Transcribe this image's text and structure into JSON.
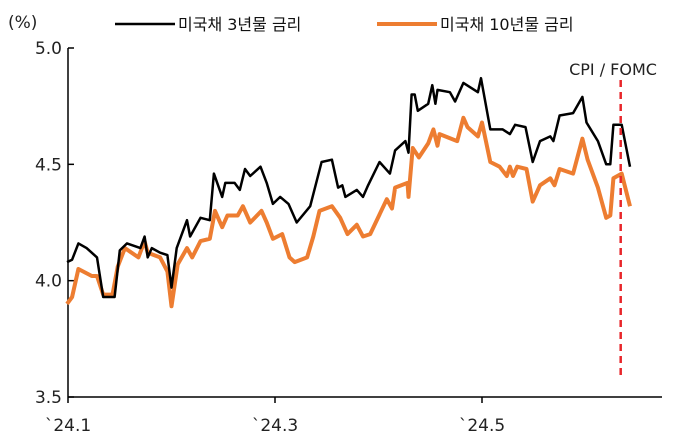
{
  "chart_data": {
    "type": "line",
    "title": "",
    "ylabel": "(%)",
    "xlabel": "",
    "ylim": [
      3.5,
      5.0
    ],
    "yticks": [
      3.5,
      4.0,
      4.5,
      5.0
    ],
    "ytick_labels": [
      "3.5",
      "4.0",
      "4.5",
      "5.0"
    ],
    "x_unit": "month of 2024",
    "xlim": [
      1,
      6.72
    ],
    "xticks": [
      1,
      3,
      5
    ],
    "xtick_labels": [
      "`24.1",
      "`24.3",
      "`24.5"
    ],
    "grid": false,
    "legend_position": "top",
    "annotations": [
      {
        "label": "CPI / FOMC",
        "x": 6.34,
        "style": "red dashed vertical line",
        "color": "#e8262a"
      }
    ],
    "series": [
      {
        "name": "미국채 3년물 금리",
        "color": "#000000",
        "x": [
          0.99,
          1.04,
          1.1,
          1.18,
          1.28,
          1.34,
          1.45,
          1.5,
          1.57,
          1.7,
          1.74,
          1.77,
          1.81,
          1.89,
          1.96,
          2.0,
          2.05,
          2.15,
          2.18,
          2.28,
          2.37,
          2.41,
          2.49,
          2.52,
          2.61,
          2.66,
          2.71,
          2.76,
          2.86,
          2.92,
          2.98,
          3.05,
          3.13,
          3.21,
          3.34,
          3.45,
          3.55,
          3.61,
          3.65,
          3.68,
          3.79,
          3.85,
          3.9,
          4.01,
          4.11,
          4.16,
          4.26,
          4.29,
          4.32,
          4.35,
          4.38,
          4.48,
          4.52,
          4.55,
          4.57,
          4.69,
          4.74,
          4.82,
          4.96,
          4.99,
          5.08,
          5.2,
          5.27,
          5.32,
          5.42,
          5.49,
          5.56,
          5.66,
          5.69,
          5.75,
          5.88,
          5.97,
          6.01,
          6.12,
          6.2,
          6.24,
          6.27,
          6.35,
          6.43
        ],
        "values": [
          4.08,
          4.09,
          4.16,
          4.14,
          4.1,
          3.93,
          3.93,
          4.13,
          4.16,
          4.14,
          4.19,
          4.1,
          4.14,
          4.12,
          4.11,
          3.97,
          4.14,
          4.26,
          4.19,
          4.27,
          4.26,
          4.46,
          4.36,
          4.42,
          4.42,
          4.39,
          4.48,
          4.45,
          4.49,
          4.42,
          4.33,
          4.36,
          4.33,
          4.25,
          4.32,
          4.51,
          4.52,
          4.4,
          4.41,
          4.36,
          4.39,
          4.36,
          4.41,
          4.51,
          4.46,
          4.56,
          4.6,
          4.55,
          4.8,
          4.8,
          4.73,
          4.76,
          4.84,
          4.76,
          4.82,
          4.81,
          4.77,
          4.85,
          4.81,
          4.87,
          4.65,
          4.65,
          4.63,
          4.67,
          4.66,
          4.51,
          4.6,
          4.62,
          4.6,
          4.71,
          4.72,
          4.79,
          4.68,
          4.6,
          4.5,
          4.5,
          4.67,
          4.67,
          4.49
        ]
      },
      {
        "name": "미국채 10년물 금리",
        "color": "#ed7d31",
        "x": [
          0.99,
          1.04,
          1.1,
          1.23,
          1.28,
          1.34,
          1.43,
          1.48,
          1.55,
          1.68,
          1.74,
          1.77,
          1.89,
          1.96,
          2.0,
          2.06,
          2.15,
          2.2,
          2.28,
          2.37,
          2.42,
          2.49,
          2.54,
          2.64,
          2.69,
          2.76,
          2.87,
          2.92,
          2.98,
          3.07,
          3.14,
          3.19,
          3.31,
          3.37,
          3.43,
          3.55,
          3.63,
          3.7,
          3.79,
          3.85,
          3.92,
          4.08,
          4.13,
          4.16,
          4.28,
          4.29,
          4.33,
          4.39,
          4.48,
          4.53,
          4.57,
          4.59,
          4.76,
          4.82,
          4.86,
          4.96,
          5.0,
          5.08,
          5.17,
          5.24,
          5.27,
          5.3,
          5.34,
          5.43,
          5.49,
          5.56,
          5.66,
          5.7,
          5.75,
          5.88,
          5.97,
          6.02,
          6.12,
          6.2,
          6.24,
          6.27,
          6.35,
          6.43
        ],
        "values": [
          3.9,
          3.93,
          4.05,
          4.02,
          4.02,
          3.94,
          3.94,
          4.06,
          4.14,
          4.1,
          4.17,
          4.12,
          4.1,
          4.04,
          3.89,
          4.07,
          4.14,
          4.1,
          4.17,
          4.18,
          4.3,
          4.23,
          4.28,
          4.28,
          4.32,
          4.25,
          4.3,
          4.25,
          4.18,
          4.2,
          4.1,
          4.08,
          4.1,
          4.19,
          4.3,
          4.32,
          4.27,
          4.2,
          4.24,
          4.19,
          4.2,
          4.35,
          4.31,
          4.4,
          4.42,
          4.36,
          4.57,
          4.53,
          4.59,
          4.65,
          4.58,
          4.63,
          4.6,
          4.7,
          4.66,
          4.62,
          4.68,
          4.51,
          4.49,
          4.45,
          4.49,
          4.45,
          4.49,
          4.48,
          4.34,
          4.41,
          4.44,
          4.41,
          4.48,
          4.46,
          4.61,
          4.52,
          4.4,
          4.27,
          4.28,
          4.44,
          4.46,
          4.32
        ]
      }
    ]
  }
}
